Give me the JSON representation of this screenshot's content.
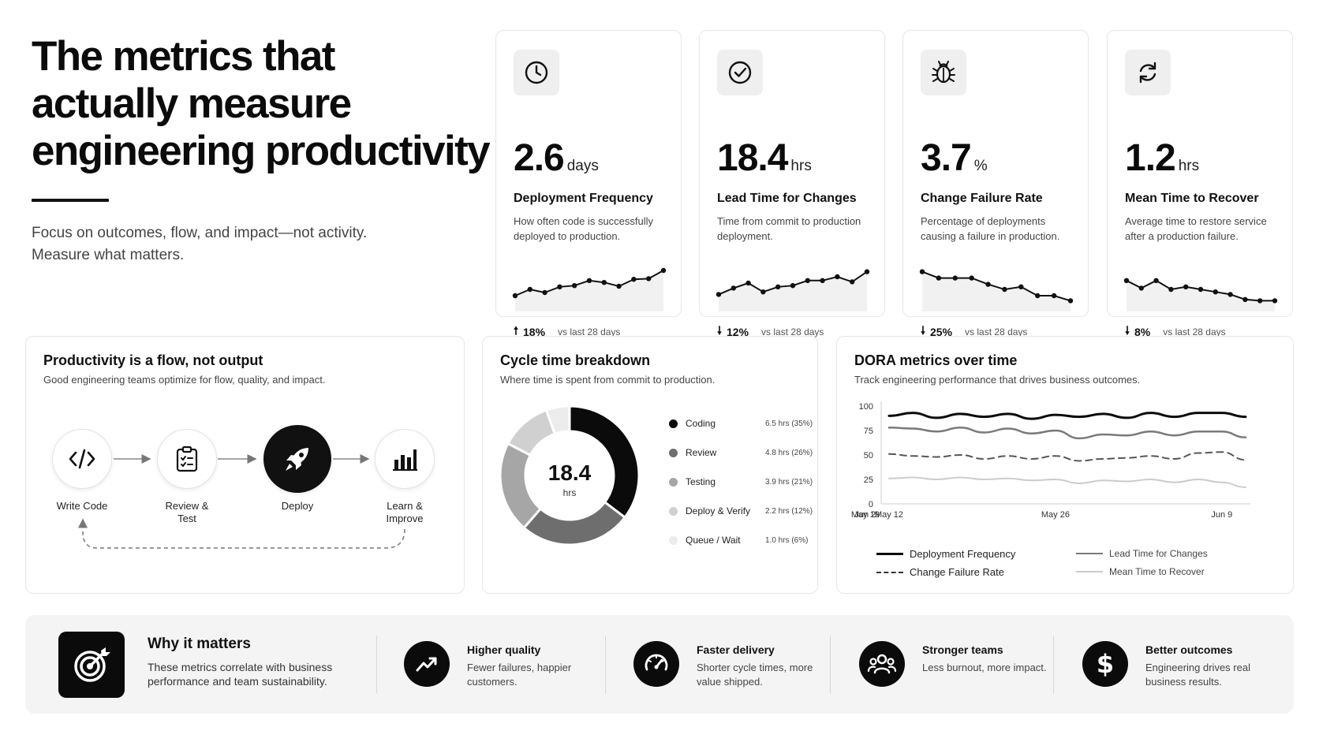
{
  "hero": {
    "title_line1": "The metrics that",
    "title_line2": "actually measure",
    "title_line3": "engineering productivity",
    "subtitle_line1": "Focus on outcomes, flow, and impact—not activity.",
    "subtitle_line2": "Measure what matters."
  },
  "metrics": [
    {
      "icon": "clock-icon",
      "value": "2.6",
      "unit": "days",
      "label": "Deployment Frequency",
      "description": "How often code is successfully deployed to production.",
      "direction": "up",
      "change": "18%",
      "compare": "vs last 28 days",
      "trend": [
        20,
        30,
        25,
        34,
        36,
        44,
        41,
        35,
        46,
        47,
        60
      ]
    },
    {
      "icon": "check-circle-icon",
      "value": "18.4",
      "unit": "hrs",
      "label": "Lead Time for Changes",
      "description": "Time from commit to production deployment.",
      "direction": "down",
      "change": "12%",
      "compare": "vs last 28 days",
      "trend": [
        22,
        32,
        40,
        26,
        34,
        36,
        44,
        44,
        50,
        42,
        58
      ]
    },
    {
      "icon": "bug-icon",
      "value": "3.7",
      "unit": "%",
      "label": "Change Failure Rate",
      "description": "Percentage of deployments causing a failure in production.",
      "direction": "down",
      "change": "25%",
      "compare": "vs last 28 days",
      "trend": [
        58,
        48,
        48,
        48,
        38,
        30,
        34,
        20,
        20,
        12
      ]
    },
    {
      "icon": "refresh-icon",
      "value": "1.2",
      "unit": "hrs",
      "label": "Mean Time to Recover",
      "description": "Average time to restore service after a production failure.",
      "direction": "down",
      "change": "8%",
      "compare": "vs last 28 days",
      "trend": [
        44,
        32,
        44,
        30,
        34,
        30,
        26,
        22,
        14,
        12,
        12
      ]
    }
  ],
  "flow": {
    "title": "Productivity is a flow, not output",
    "subtitle": "Good engineering teams optimize for flow, quality, and impact.",
    "steps": [
      {
        "icon": "code-icon",
        "label_line1": "Write Code",
        "label_line2": ""
      },
      {
        "icon": "clipboard-check-icon",
        "label_line1": "Review &",
        "label_line2": "Test"
      },
      {
        "icon": "rocket-icon",
        "label_line1": "Deploy",
        "label_line2": ""
      },
      {
        "icon": "bar-chart-icon",
        "label_line1": "Learn &",
        "label_line2": "Improve"
      }
    ]
  },
  "cycle": {
    "title": "Cycle time breakdown",
    "subtitle": "Where time is spent from commit to production.",
    "center_value": "18.4",
    "center_unit": "hrs",
    "segments": [
      {
        "name": "Coding",
        "value": 6.5,
        "display": "6.5 hrs (35%)",
        "color": "#0b0b0b"
      },
      {
        "name": "Review",
        "value": 4.8,
        "display": "4.8 hrs (26%)",
        "color": "#6e6e6e"
      },
      {
        "name": "Testing",
        "value": 3.9,
        "display": "3.9 hrs (21%)",
        "color": "#a6a6a6"
      },
      {
        "name": "Deploy & Verify",
        "value": 2.2,
        "display": "2.2 hrs (12%)",
        "color": "#d0d0d0"
      },
      {
        "name": "Queue / Wait",
        "value": 1.0,
        "display": "1.0 hrs (6%)",
        "color": "#ececec"
      }
    ]
  },
  "dora": {
    "title": "DORA metrics over time",
    "subtitle": "Track engineering performance that drives business outcomes.",
    "legend": [
      {
        "name": "Deployment Frequency"
      },
      {
        "name": "Lead Time for Changes"
      },
      {
        "name": "Change Failure Rate"
      },
      {
        "name": "Mean Time to Recover"
      }
    ]
  },
  "chart_data": {
    "type": "line",
    "title": "DORA metrics over time",
    "x_ticks": [
      "May 12",
      "May 19",
      "May 26",
      "Jun 2",
      "Jun 9"
    ],
    "y_ticks": [
      0,
      25,
      50,
      75,
      100
    ],
    "ylim": [
      0,
      100
    ],
    "grid": false,
    "legend_position": "bottom",
    "x": [
      "May 12",
      "May 14",
      "May 16",
      "May 18",
      "May 20",
      "May 22",
      "May 24",
      "May 26",
      "May 28",
      "May 30",
      "Jun 1",
      "Jun 3",
      "Jun 5",
      "Jun 7",
      "Jun 9",
      "Jun 11"
    ],
    "series": [
      {
        "name": "Deployment Frequency",
        "color": "#0b0b0b",
        "dash": "solid",
        "width": 3,
        "values": [
          90,
          93,
          88,
          92,
          89,
          92,
          87,
          91,
          89,
          92,
          88,
          93,
          89,
          93,
          93,
          89
        ]
      },
      {
        "name": "Lead Time for Changes",
        "color": "#7a7a7a",
        "dash": "solid",
        "width": 2.5,
        "values": [
          78,
          77,
          74,
          78,
          73,
          77,
          72,
          75,
          67,
          71,
          70,
          74,
          70,
          74,
          74,
          68
        ]
      },
      {
        "name": "Change Failure Rate",
        "color": "#555555",
        "dash": "dashed",
        "width": 2,
        "values": [
          51,
          49,
          48,
          50,
          46,
          49,
          46,
          49,
          44,
          46,
          47,
          49,
          46,
          52,
          53,
          45
        ]
      },
      {
        "name": "Mean Time to Recover",
        "color": "#cccccc",
        "dash": "solid",
        "width": 2,
        "values": [
          26,
          27,
          25,
          27,
          25,
          26,
          24,
          25,
          21,
          24,
          23,
          25,
          22,
          25,
          22,
          17
        ]
      }
    ]
  },
  "why": {
    "icon": "target-icon",
    "title": "Why it matters",
    "description": "These metrics correlate with business performance and team sustainability.",
    "benefits": [
      {
        "icon": "trending-up-icon",
        "title": "Higher quality",
        "description": "Fewer failures, happier customers."
      },
      {
        "icon": "speedometer-icon",
        "title": "Faster delivery",
        "description": "Shorter cycle times, more value shipped."
      },
      {
        "icon": "team-icon",
        "title": "Stronger teams",
        "description": "Less burnout, more impact."
      },
      {
        "icon": "dollar-icon",
        "title": "Better outcomes",
        "description": "Engineering drives real business results."
      }
    ]
  }
}
